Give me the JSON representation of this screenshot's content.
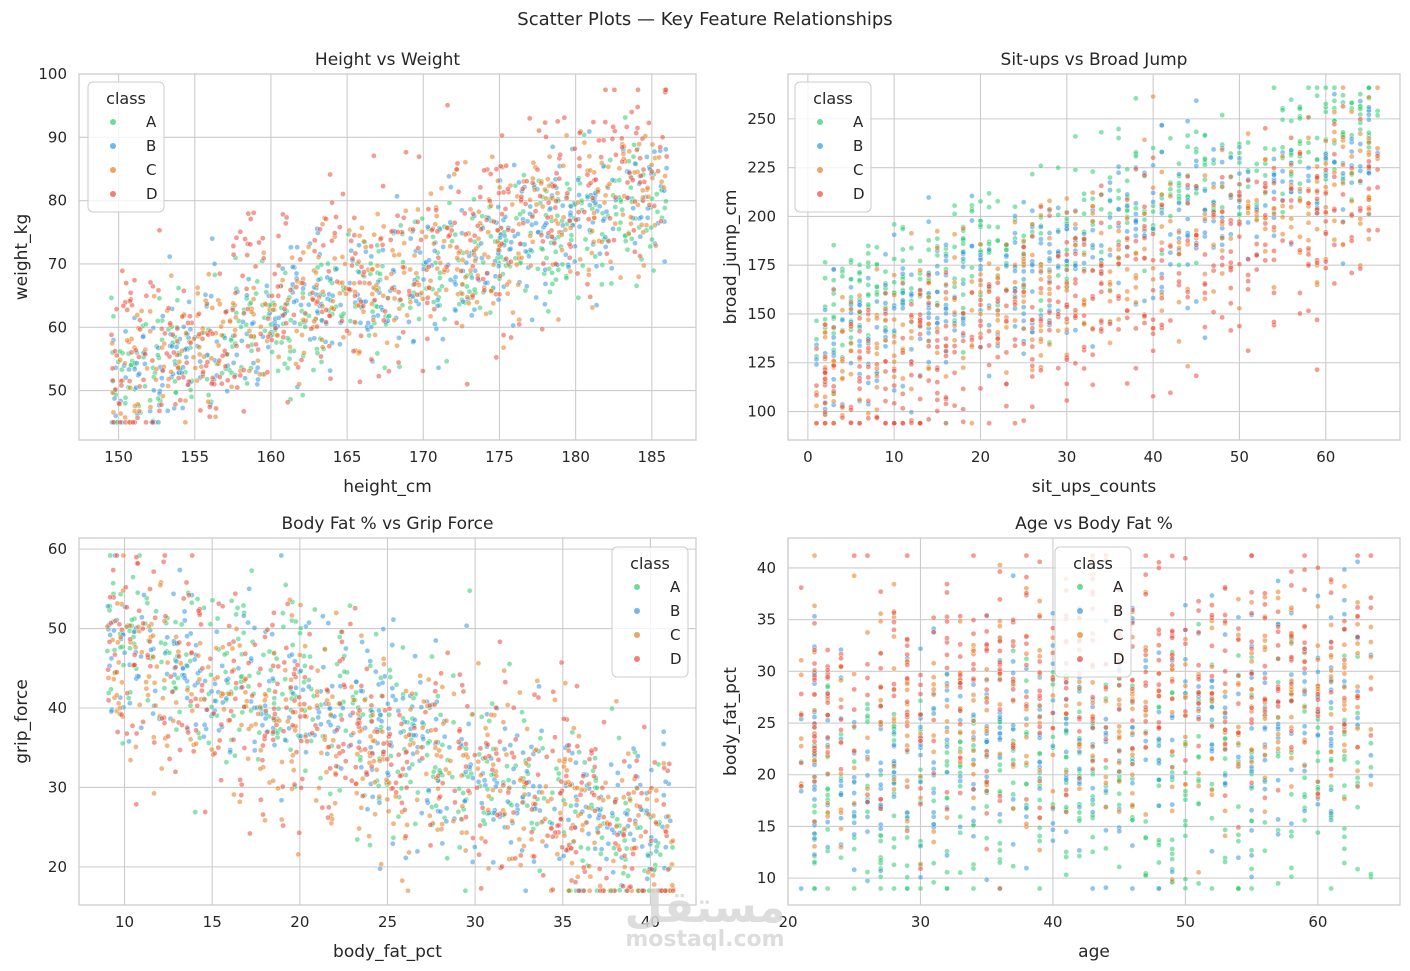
{
  "figure_title": "Scatter Plots — Key Feature Relationships",
  "watermark": {
    "logo_text": "مستقل",
    "site": "mostaql.com"
  },
  "colors": {
    "A": "#2ecc71",
    "B": "#3498db",
    "C": "#e67e22",
    "D": "#e74c3c",
    "grid": "#cccccc",
    "frame": "#cccccc"
  },
  "chart_data": [
    {
      "type": "scatter",
      "title": "Height vs Weight",
      "xlabel": "height_cm",
      "ylabel": "weight_kg",
      "xlim": [
        147.4,
        187.9
      ],
      "ylim": [
        42.2,
        100.0
      ],
      "xticks": [
        150,
        155,
        160,
        165,
        170,
        175,
        180,
        185
      ],
      "yticks": [
        50,
        60,
        70,
        80,
        90,
        100
      ],
      "legend": {
        "title": "class",
        "placement": "top-left",
        "entries": [
          "A",
          "B",
          "C",
          "D"
        ]
      },
      "series": [
        {
          "name": "A",
          "trend": {
            "x_range": [
              149.5,
              186.0
            ],
            "y_at_x_min": 51,
            "y_at_x_max": 81,
            "spread": 5
          }
        },
        {
          "name": "B",
          "trend": {
            "x_range": [
              149.5,
              186.0
            ],
            "y_at_x_min": 51,
            "y_at_x_max": 82,
            "spread": 5.5
          }
        },
        {
          "name": "C",
          "trend": {
            "x_range": [
              149.5,
              186.0
            ],
            "y_at_x_min": 52,
            "y_at_x_max": 83,
            "spread": 6
          }
        },
        {
          "name": "D",
          "trend": {
            "x_range": [
              149.5,
              186.0
            ],
            "y_at_x_min": 54,
            "y_at_x_max": 86,
            "spread": 8
          }
        }
      ],
      "clip": {
        "x": [
          149.5,
          186.0
        ],
        "y": [
          45.0,
          97.5
        ]
      }
    },
    {
      "type": "scatter",
      "title": "Sit-ups vs Broad Jump",
      "xlabel": "sit_ups_counts",
      "ylabel": "broad_jump_cm",
      "xlim": [
        -2.3,
        68.6
      ],
      "ylim": [
        85.4,
        273.0
      ],
      "xticks": [
        0,
        10,
        20,
        30,
        40,
        50,
        60
      ],
      "yticks": [
        100,
        125,
        150,
        175,
        200,
        225,
        250
      ],
      "legend": {
        "title": "class",
        "placement": "top-left",
        "entries": [
          "A",
          "B",
          "C",
          "D"
        ]
      },
      "series": [
        {
          "name": "A",
          "trend": {
            "x_range": [
              1,
              66
            ],
            "y_at_x_min": 150,
            "y_at_x_max": 245,
            "spread": 18
          }
        },
        {
          "name": "B",
          "trend": {
            "x_range": [
              1,
              66
            ],
            "y_at_x_min": 135,
            "y_at_x_max": 235,
            "spread": 20
          }
        },
        {
          "name": "C",
          "trend": {
            "x_range": [
              1,
              66
            ],
            "y_at_x_min": 120,
            "y_at_x_max": 225,
            "spread": 22
          }
        },
        {
          "name": "D",
          "trend": {
            "x_range": [
              1,
              66
            ],
            "y_at_x_min": 105,
            "y_at_x_max": 210,
            "spread": 25
          }
        }
      ],
      "clip": {
        "x": [
          1,
          66
        ],
        "y": [
          94,
          266
        ]
      }
    },
    {
      "type": "scatter",
      "title": "Body Fat % vs Grip Force",
      "xlabel": "body_fat_pct",
      "ylabel": "grip_force",
      "xlim": [
        7.4,
        42.6
      ],
      "ylim": [
        15.2,
        61.4
      ],
      "xticks": [
        10,
        15,
        20,
        25,
        30,
        35,
        40
      ],
      "yticks": [
        20,
        30,
        40,
        50,
        60
      ],
      "legend": {
        "title": "class",
        "placement": "top-right",
        "entries": [
          "A",
          "B",
          "C",
          "D"
        ]
      },
      "series": [
        {
          "name": "A",
          "trend": {
            "x_range": [
              9,
              41.3
            ],
            "y_at_x_min": 50,
            "y_at_x_max": 22,
            "spread": 6
          }
        },
        {
          "name": "B",
          "trend": {
            "x_range": [
              9,
              41.3
            ],
            "y_at_x_min": 49,
            "y_at_x_max": 23,
            "spread": 6
          }
        },
        {
          "name": "C",
          "trend": {
            "x_range": [
              9,
              41.3
            ],
            "y_at_x_min": 46,
            "y_at_x_max": 22,
            "spread": 6
          }
        },
        {
          "name": "D",
          "trend": {
            "x_range": [
              9,
              41.3
            ],
            "y_at_x_min": 47,
            "y_at_x_max": 24,
            "spread": 7
          }
        }
      ],
      "clip": {
        "x": [
          9,
          41.3
        ],
        "y": [
          17,
          59.2
        ]
      }
    },
    {
      "type": "scatter",
      "title": "Age vs Body Fat %",
      "xlabel": "age",
      "ylabel": "body_fat_pct",
      "xlim": [
        20.0,
        66.2
      ],
      "ylim": [
        7.4,
        42.9
      ],
      "xticks": [
        20,
        30,
        40,
        50,
        60
      ],
      "yticks": [
        10,
        15,
        20,
        25,
        30,
        35,
        40
      ],
      "legend": {
        "title": "class",
        "placement": "upper-middle",
        "entries": [
          "A",
          "B",
          "C",
          "D"
        ]
      },
      "series": [
        {
          "name": "A",
          "trend": {
            "x_range": [
              21,
              64
            ],
            "y_at_x_min": 17,
            "y_at_x_max": 21,
            "spread": 6
          }
        },
        {
          "name": "B",
          "trend": {
            "x_range": [
              21,
              64
            ],
            "y_at_x_min": 21,
            "y_at_x_max": 25,
            "spread": 6
          }
        },
        {
          "name": "C",
          "trend": {
            "x_range": [
              21,
              64
            ],
            "y_at_x_min": 24,
            "y_at_x_max": 28,
            "spread": 6
          }
        },
        {
          "name": "D",
          "trend": {
            "x_range": [
              21,
              64
            ],
            "y_at_x_min": 27,
            "y_at_x_max": 31,
            "spread": 6
          }
        }
      ],
      "clip": {
        "x": [
          21,
          64
        ],
        "y": [
          9,
          41.2
        ]
      }
    }
  ]
}
